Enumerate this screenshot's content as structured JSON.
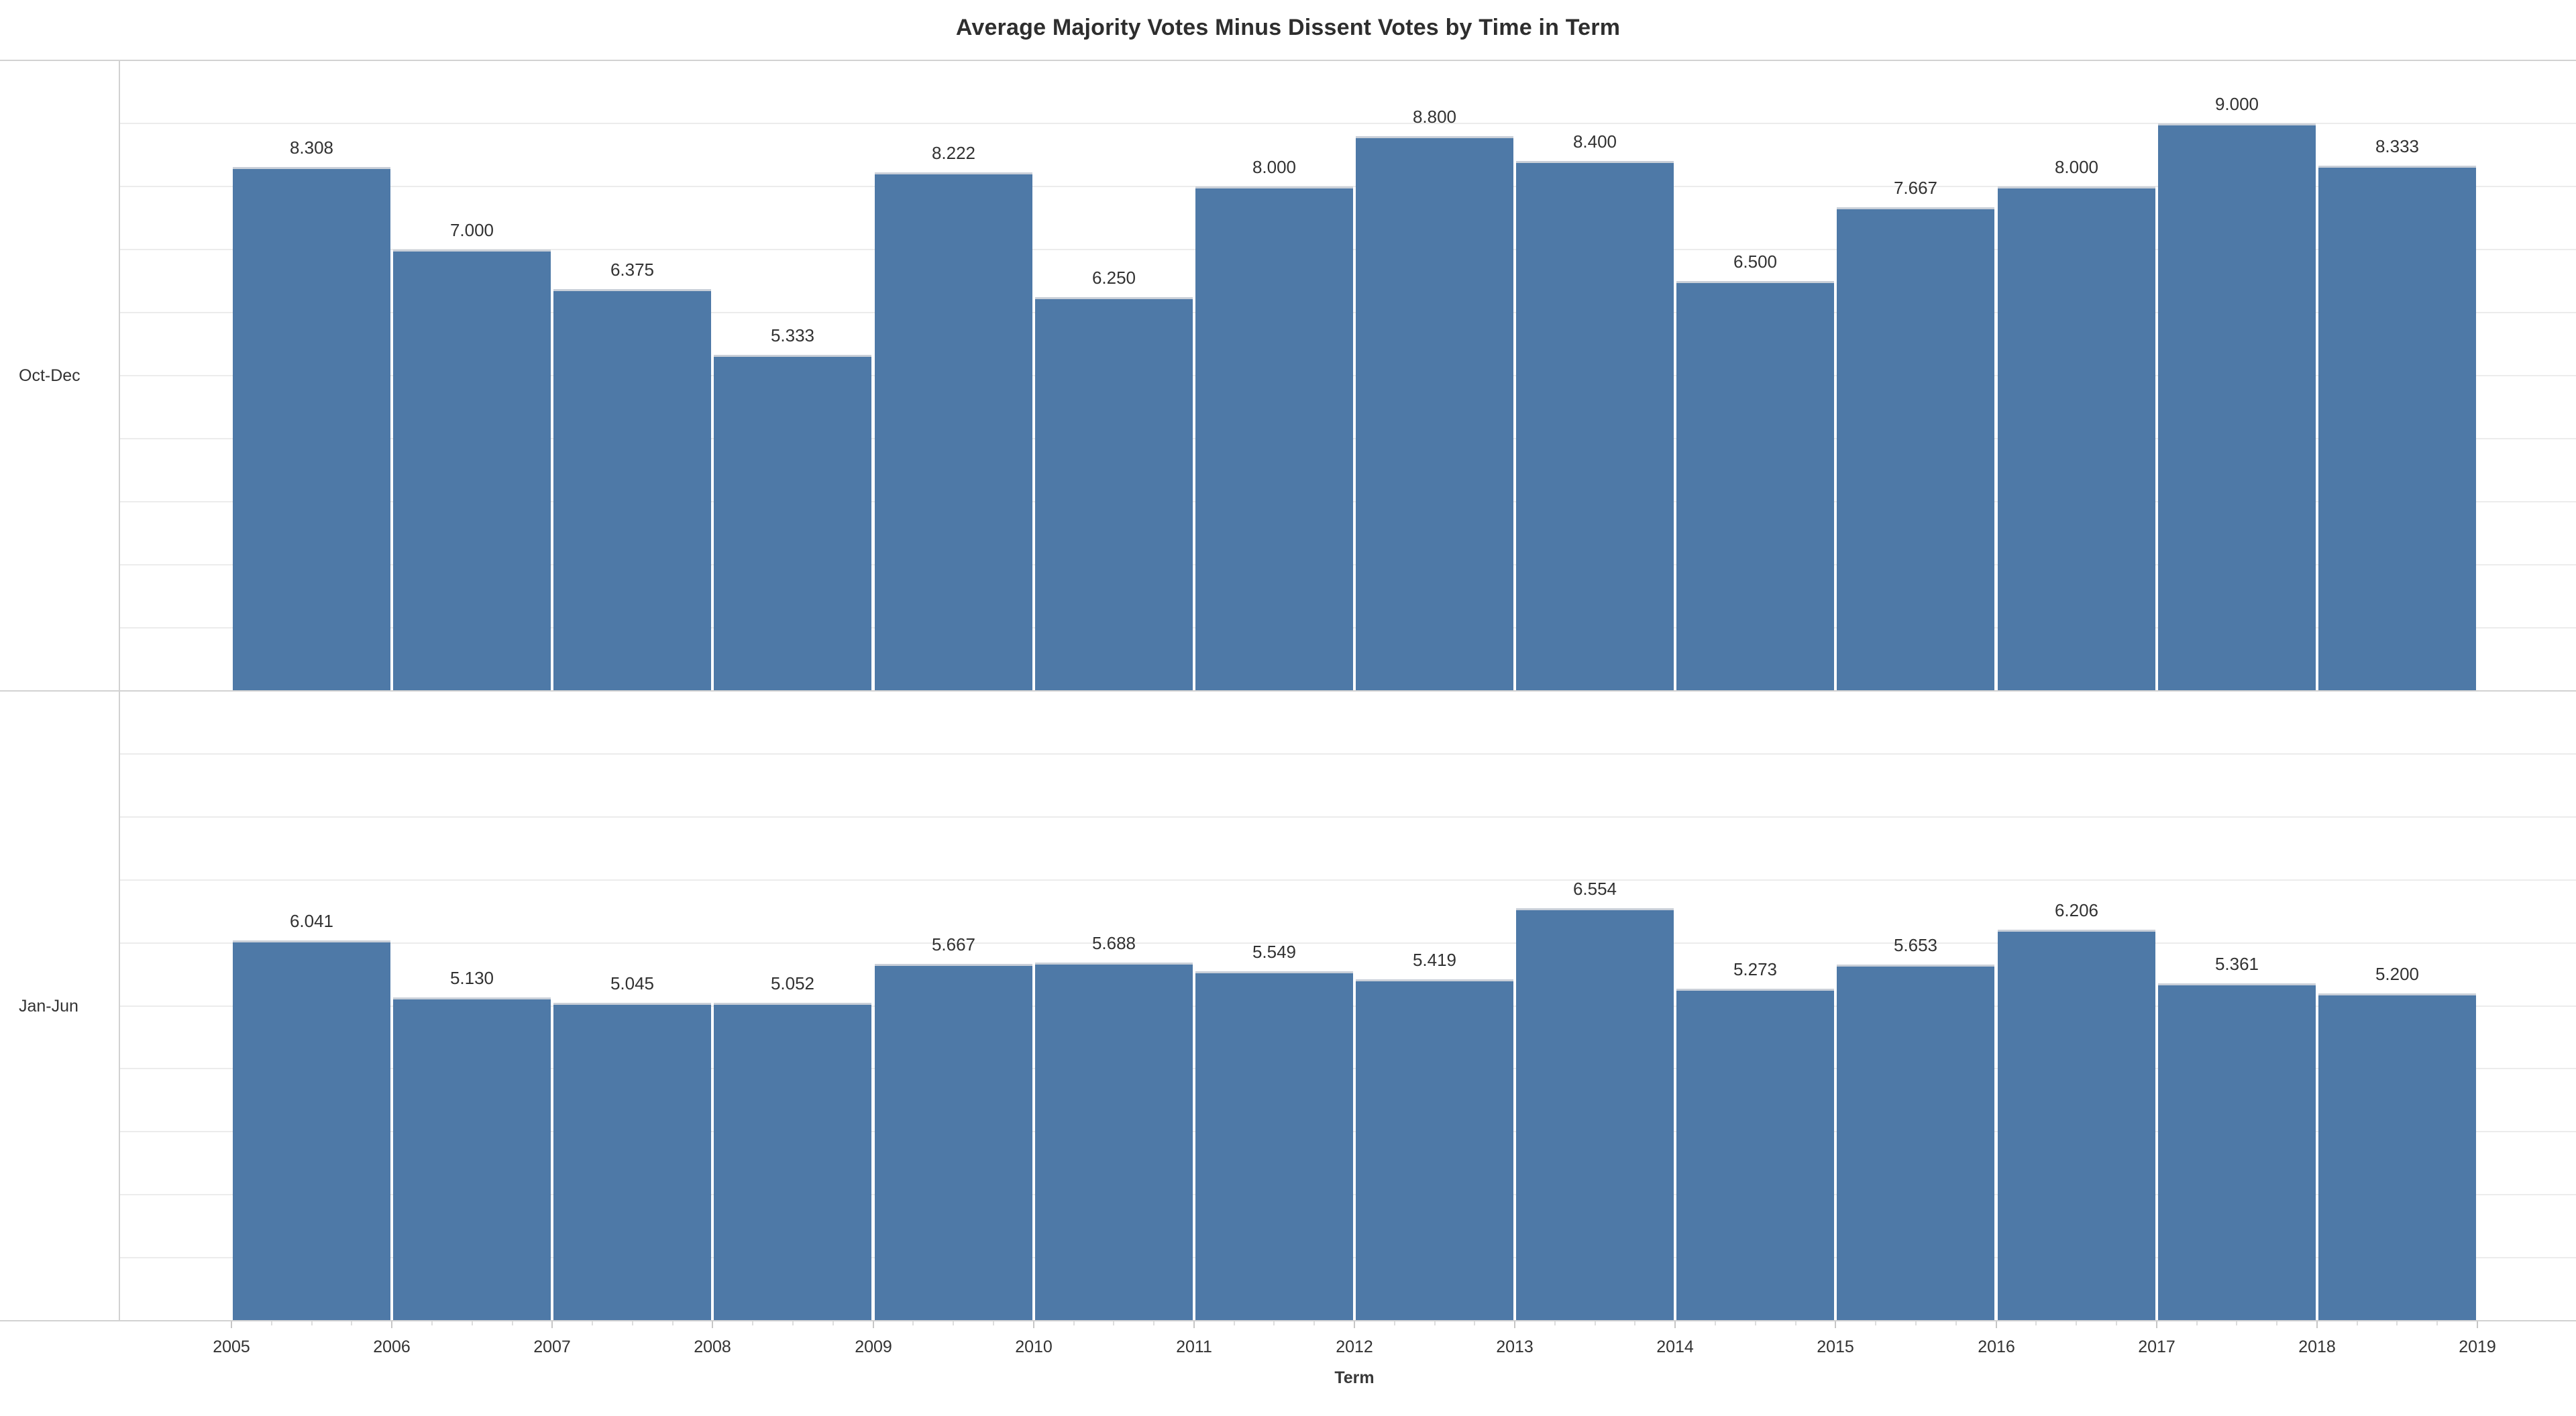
{
  "chart_data": {
    "type": "bar",
    "title": "Average Majority Votes Minus Dissent Votes by Time in Term",
    "xlabel": "Term",
    "ylabel": "",
    "x_ticks": [
      "2005",
      "2006",
      "2007",
      "2008",
      "2009",
      "2010",
      "2011",
      "2012",
      "2013",
      "2014",
      "2015",
      "2016",
      "2017",
      "2018",
      "2019"
    ],
    "bars_span_between_ticks": true,
    "ylim": [
      0,
      10
    ],
    "gridline_step": 1,
    "grid": "horizontal",
    "legend": "none",
    "value_label_format": "0.000",
    "bar_color": "#4e79a7",
    "bar_top_edge_color": "#c9cfd8",
    "gridline_color": "#ececec",
    "border_color": "#d2d2d2",
    "major_tick_color": "#c6c6c6",
    "minor_tick_color": "#dddddd",
    "facets": [
      {
        "label": "Oct-Dec",
        "values": [
          8.308,
          7.0,
          6.375,
          5.333,
          8.222,
          6.25,
          8.0,
          8.8,
          8.4,
          6.5,
          7.667,
          8.0,
          9.0,
          8.333
        ]
      },
      {
        "label": "Jan-Jun",
        "values": [
          6.041,
          5.13,
          5.045,
          5.052,
          5.667,
          5.688,
          5.549,
          5.419,
          6.554,
          5.273,
          5.653,
          6.206,
          5.361,
          5.2
        ]
      }
    ]
  }
}
